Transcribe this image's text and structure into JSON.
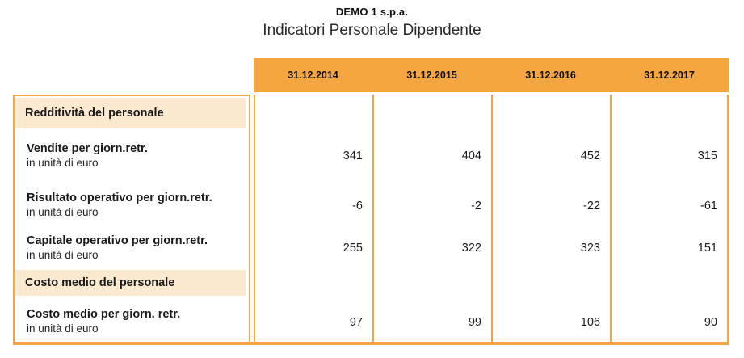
{
  "header": {
    "company": "DEMO 1 s.p.a.",
    "title": "Indicatori Personale Dipendente"
  },
  "colors": {
    "accent-orange": "#F5A640",
    "section-peach": "#FCEAD0",
    "text-dark": "#1C1C1C"
  },
  "table": {
    "columns": [
      "31.12.2014",
      "31.12.2015",
      "31.12.2016",
      "31.12.2017"
    ],
    "rows": [
      {
        "type": "section",
        "label": "Redditività del personale"
      },
      {
        "type": "data",
        "label": "Vendite per giorn.retr.",
        "sublabel": "in unità di euro",
        "values": [
          "341",
          "404",
          "452",
          "315"
        ]
      },
      {
        "type": "data",
        "label": "Risultato operativo per giorn.retr.",
        "sublabel": "in unità di euro",
        "values": [
          "-6",
          "-2",
          "-22",
          "-61"
        ]
      },
      {
        "type": "data",
        "label": "Capitale operativo per giorn.retr.",
        "sublabel": "in unità di euro",
        "values": [
          "255",
          "322",
          "323",
          "151"
        ]
      },
      {
        "type": "section",
        "label": "Costo medio del personale"
      },
      {
        "type": "data",
        "label": "Costo medio per giorn. retr.",
        "sublabel": "in unità di euro",
        "values": [
          "97",
          "99",
          "106",
          "90"
        ]
      }
    ]
  }
}
